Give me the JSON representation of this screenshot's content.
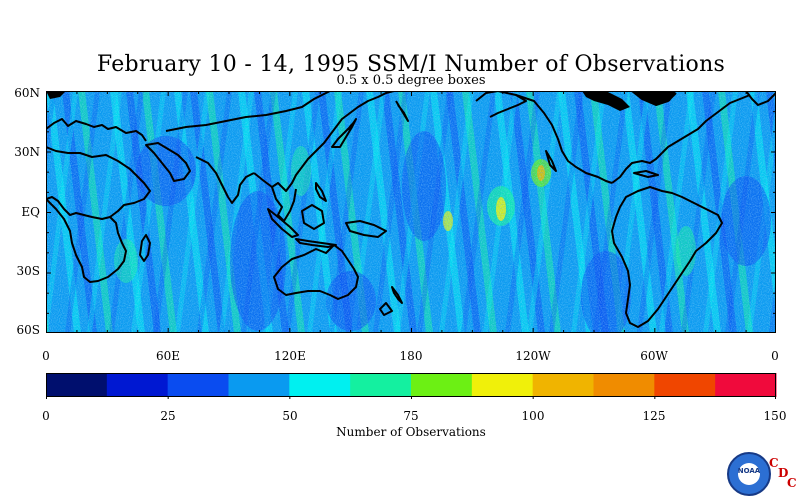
{
  "header": {
    "title": "February 10 - 14, 1995 SSM/I Number of Observations",
    "subtitle": "0.5 x 0.5 degree boxes"
  },
  "map": {
    "lat_labels": [
      "60N",
      "30N",
      "EQ",
      "30S",
      "60S"
    ],
    "lon_labels": [
      "0",
      "60E",
      "120E",
      "180",
      "120W",
      "60W",
      "0"
    ]
  },
  "colorbar": {
    "title": "Number of Observations",
    "tick_labels": [
      "0",
      "25",
      "50",
      "75",
      "100",
      "125",
      "150"
    ],
    "colors": [
      "#000f6e",
      "#0018d2",
      "#0a4cf0",
      "#0a9af0",
      "#00f0f0",
      "#14f0a0",
      "#6cf014",
      "#f0f00a",
      "#f0b400",
      "#f08c00",
      "#f04600",
      "#f00a3c"
    ]
  },
  "logos": {
    "noaa_text": "NOAA",
    "cdc_letters": [
      "C",
      "D",
      "C"
    ]
  }
}
